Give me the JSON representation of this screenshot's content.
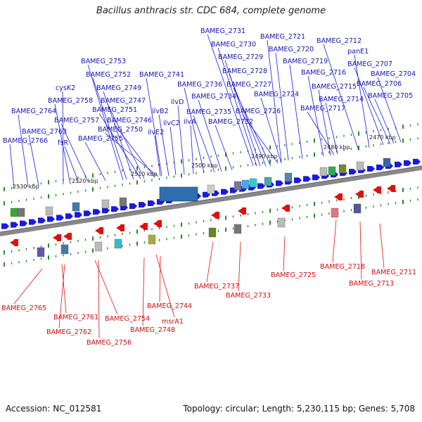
{
  "header": {
    "title": "Bacillus anthracis str. CDC 684, complete genome"
  },
  "footer": {
    "accession": "Accession: NC_012581",
    "topology": "Topology: circular; Length: 5,230,115 bp; Genes: 5,708"
  },
  "colors": {
    "forward_gene": "#1a1adc",
    "reverse_gene": "#e01010",
    "forward_label": "#1515b0",
    "reverse_label": "#cc1111",
    "backbone": "#888888",
    "tick": "#2a8a2a"
  },
  "scale_marks": [
    "2470 kbp",
    "2480 kbp",
    "2490 kbp",
    "2500 kbp",
    "2510 kbp",
    "2520 kbp",
    "2530 kbp"
  ],
  "forward_labels": [
    "BAMEG_2731",
    "BAMEG_2721",
    "BAMEG_2712",
    "BAMEG_2730",
    "BAMEG_2720",
    "panE1",
    "BAMEG_2753",
    "BAMEG_2729",
    "BAMEG_2719",
    "BAMEG_2707",
    "BAMEG_2752",
    "BAMEG_2741",
    "BAMEG_2728",
    "BAMEG_2716",
    "BAMEG_2704",
    "cysK2",
    "BAMEG_2749",
    "BAMEG_2736",
    "BAMEG_2727",
    "BAMEG_2715",
    "BAMEG_2706",
    "BAMEG_2758",
    "BAMEG_2747",
    "ilvD",
    "BAMEG_2734",
    "BAMEG_2724",
    "BAMEG_2714",
    "BAMEG_2705",
    "BAMEG_2764",
    "BAMEG_2751",
    "ilvB2",
    "BAMEG_2735",
    "BAMEG_2726",
    "BAMEG_2717",
    "BAMEG_2757",
    "BAMEG_2746",
    "ilvC2",
    "ilvA",
    "BAMEG_2732",
    "BAMEG_2763",
    "BAMEG_2750",
    "ilvE2",
    "BAMEG_2766",
    "fsR",
    "BAMEG_2755"
  ],
  "reverse_labels": [
    "BAMEG_2711",
    "BAMEG_2718",
    "BAMEG_2713",
    "BAMEG_2725",
    "BAMEG_2737",
    "BAMEG_2733",
    "BAMEG_2765",
    "BAMEG_2744",
    "BAMEG_2761",
    "BAMEG_2754",
    "msrA1",
    "BAMEG_2762",
    "BAMEG_2748",
    "BAMEG_2756"
  ]
}
